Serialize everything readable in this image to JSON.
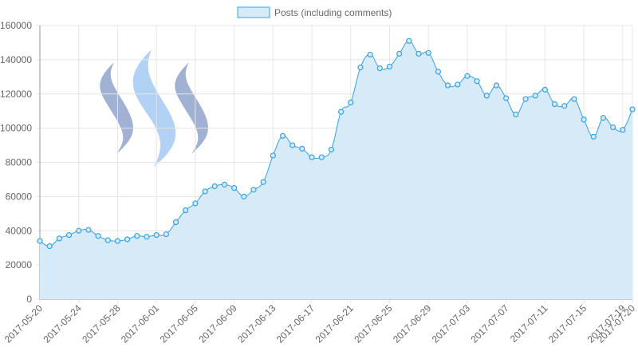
{
  "chart_data": {
    "type": "line",
    "categories": [
      "2017-05-20",
      null,
      null,
      null,
      "2017-05-24",
      null,
      null,
      null,
      "2017-05-28",
      null,
      null,
      null,
      "2017-06-01",
      null,
      null,
      null,
      "2017-06-05",
      null,
      null,
      null,
      "2017-06-09",
      null,
      null,
      null,
      "2017-06-13",
      null,
      null,
      null,
      "2017-06-17",
      null,
      null,
      null,
      "2017-06-21",
      null,
      null,
      null,
      "2017-06-25",
      null,
      null,
      null,
      "2017-06-29",
      null,
      null,
      null,
      "2017-07-03",
      null,
      null,
      null,
      "2017-07-07",
      null,
      null,
      null,
      "2017-07-11",
      null,
      null,
      null,
      "2017-07-15",
      null,
      null,
      null,
      "2017-07-19",
      "2017-07-20"
    ],
    "series": [
      {
        "name": "Posts (including comments)",
        "color": "#36a2eb",
        "fill": "#d6eaf8",
        "values": [
          34000,
          31000,
          35500,
          37500,
          40000,
          40500,
          37000,
          34500,
          34000,
          35000,
          37000,
          36500,
          37500,
          38000,
          45000,
          52000,
          56000,
          63000,
          66000,
          67000,
          65000,
          60000,
          64000,
          68500,
          84000,
          95500,
          90000,
          88000,
          83000,
          83000,
          87500,
          109500,
          115000,
          135500,
          143000,
          135000,
          136000,
          143500,
          151000,
          143500,
          144000,
          133000,
          125000,
          125500,
          130500,
          127500,
          119000,
          125000,
          117500,
          108000,
          117000,
          119000,
          122500,
          114000,
          113000,
          117000,
          105000,
          95000,
          106000,
          100500,
          99000,
          111000
        ]
      }
    ],
    "ylim": [
      0,
      160000
    ],
    "yticks": [
      0,
      20000,
      40000,
      60000,
      80000,
      100000,
      120000,
      140000,
      160000
    ],
    "grid": true
  }
}
